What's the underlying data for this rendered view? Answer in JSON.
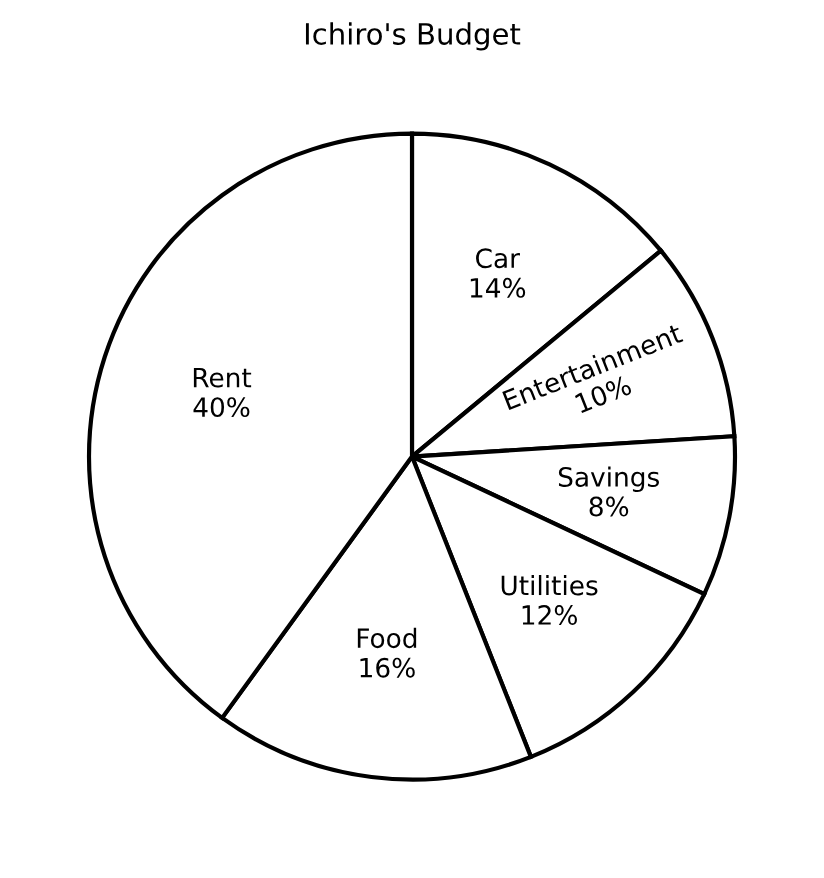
{
  "chart_data": {
    "type": "pie",
    "title": "Ichiro's Budget",
    "categories": [
      "Car",
      "Entertainment",
      "Savings",
      "Utilities",
      "Food",
      "Rent"
    ],
    "values": [
      14,
      10,
      8,
      12,
      16,
      40
    ],
    "value_labels": [
      "14%",
      "10%",
      "8%",
      "12%",
      "16%",
      "40%"
    ],
    "colors": [
      "#ffffff",
      "#ffffff",
      "#ffffff",
      "#ffffff",
      "#ffffff",
      "#ffffff"
    ]
  }
}
